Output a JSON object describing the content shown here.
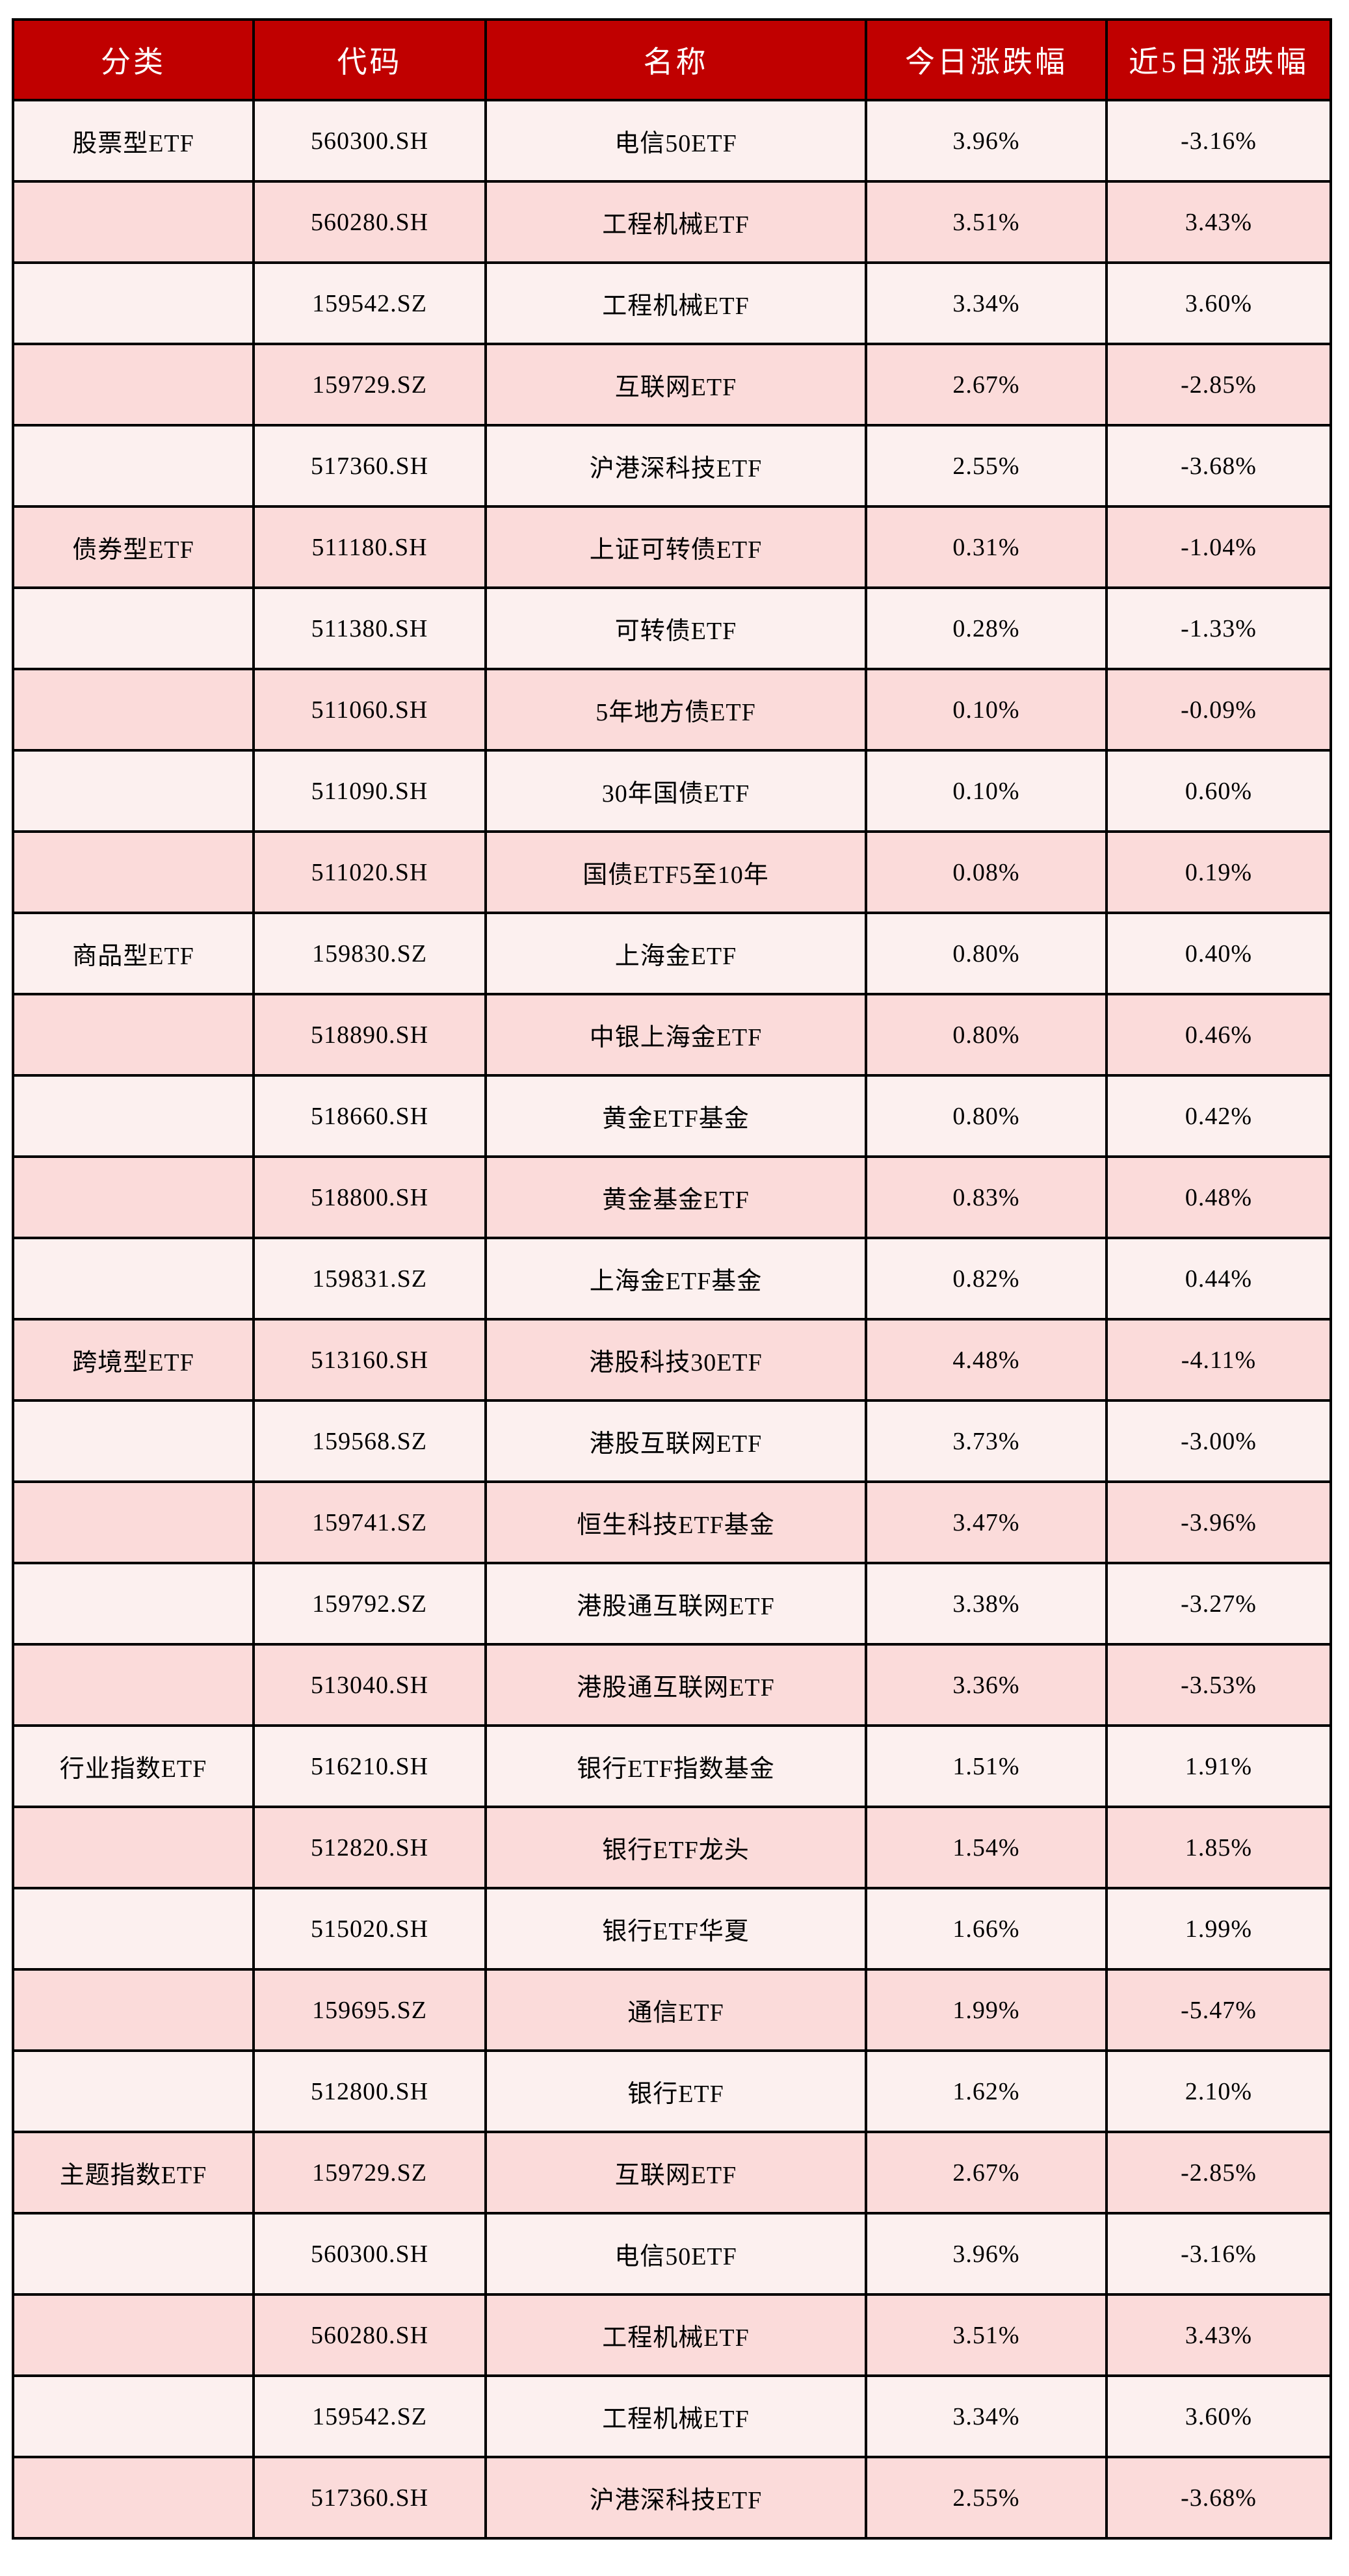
{
  "chart_data": {
    "type": "table",
    "columns": [
      "分类",
      "代码",
      "名称",
      "今日涨跌幅",
      "近5日涨跌幅"
    ],
    "rows": [
      {
        "category": "股票型ETF",
        "code": "560300.SH",
        "name": "电信50ETF",
        "today": "3.96%",
        "five_day": "-3.16%"
      },
      {
        "category": "",
        "code": "560280.SH",
        "name": "工程机械ETF",
        "today": "3.51%",
        "five_day": "3.43%"
      },
      {
        "category": "",
        "code": "159542.SZ",
        "name": "工程机械ETF",
        "today": "3.34%",
        "five_day": "3.60%"
      },
      {
        "category": "",
        "code": "159729.SZ",
        "name": "互联网ETF",
        "today": "2.67%",
        "five_day": "-2.85%"
      },
      {
        "category": "",
        "code": "517360.SH",
        "name": "沪港深科技ETF",
        "today": "2.55%",
        "five_day": "-3.68%"
      },
      {
        "category": "债券型ETF",
        "code": "511180.SH",
        "name": "上证可转债ETF",
        "today": "0.31%",
        "five_day": "-1.04%"
      },
      {
        "category": "",
        "code": "511380.SH",
        "name": "可转债ETF",
        "today": "0.28%",
        "five_day": "-1.33%"
      },
      {
        "category": "",
        "code": "511060.SH",
        "name": "5年地方债ETF",
        "today": "0.10%",
        "five_day": "-0.09%"
      },
      {
        "category": "",
        "code": "511090.SH",
        "name": "30年国债ETF",
        "today": "0.10%",
        "five_day": "0.60%"
      },
      {
        "category": "",
        "code": "511020.SH",
        "name": "国债ETF5至10年",
        "today": "0.08%",
        "five_day": "0.19%"
      },
      {
        "category": "商品型ETF",
        "code": "159830.SZ",
        "name": "上海金ETF",
        "today": "0.80%",
        "five_day": "0.40%"
      },
      {
        "category": "",
        "code": "518890.SH",
        "name": "中银上海金ETF",
        "today": "0.80%",
        "five_day": "0.46%"
      },
      {
        "category": "",
        "code": "518660.SH",
        "name": "黄金ETF基金",
        "today": "0.80%",
        "five_day": "0.42%"
      },
      {
        "category": "",
        "code": "518800.SH",
        "name": "黄金基金ETF",
        "today": "0.83%",
        "five_day": "0.48%"
      },
      {
        "category": "",
        "code": "159831.SZ",
        "name": "上海金ETF基金",
        "today": "0.82%",
        "five_day": "0.44%"
      },
      {
        "category": "跨境型ETF",
        "code": "513160.SH",
        "name": "港股科技30ETF",
        "today": "4.48%",
        "five_day": "-4.11%"
      },
      {
        "category": "",
        "code": "159568.SZ",
        "name": "港股互联网ETF",
        "today": "3.73%",
        "five_day": "-3.00%"
      },
      {
        "category": "",
        "code": "159741.SZ",
        "name": "恒生科技ETF基金",
        "today": "3.47%",
        "five_day": "-3.96%"
      },
      {
        "category": "",
        "code": "159792.SZ",
        "name": "港股通互联网ETF",
        "today": "3.38%",
        "five_day": "-3.27%"
      },
      {
        "category": "",
        "code": "513040.SH",
        "name": "港股通互联网ETF",
        "today": "3.36%",
        "five_day": "-3.53%"
      },
      {
        "category": "行业指数ETF",
        "code": "516210.SH",
        "name": "银行ETF指数基金",
        "today": "1.51%",
        "five_day": "1.91%"
      },
      {
        "category": "",
        "code": "512820.SH",
        "name": "银行ETF龙头",
        "today": "1.54%",
        "five_day": "1.85%"
      },
      {
        "category": "",
        "code": "515020.SH",
        "name": "银行ETF华夏",
        "today": "1.66%",
        "five_day": "1.99%"
      },
      {
        "category": "",
        "code": "159695.SZ",
        "name": "通信ETF",
        "today": "1.99%",
        "five_day": "-5.47%"
      },
      {
        "category": "",
        "code": "512800.SH",
        "name": "银行ETF",
        "today": "1.62%",
        "five_day": "2.10%"
      },
      {
        "category": "主题指数ETF",
        "code": "159729.SZ",
        "name": "互联网ETF",
        "today": "2.67%",
        "five_day": "-2.85%"
      },
      {
        "category": "",
        "code": "560300.SH",
        "name": "电信50ETF",
        "today": "3.96%",
        "five_day": "-3.16%"
      },
      {
        "category": "",
        "code": "560280.SH",
        "name": "工程机械ETF",
        "today": "3.51%",
        "five_day": "3.43%"
      },
      {
        "category": "",
        "code": "159542.SZ",
        "name": "工程机械ETF",
        "today": "3.34%",
        "five_day": "3.60%"
      },
      {
        "category": "",
        "code": "517360.SH",
        "name": "沪港深科技ETF",
        "today": "2.55%",
        "five_day": "-3.68%"
      }
    ]
  },
  "colors": {
    "header_bg": "#C00000",
    "header_text": "#FFFFFF",
    "row_light": "#FCF0EF",
    "row_dark": "#FBDBDA",
    "border": "#000000",
    "body_text": "#000000"
  }
}
